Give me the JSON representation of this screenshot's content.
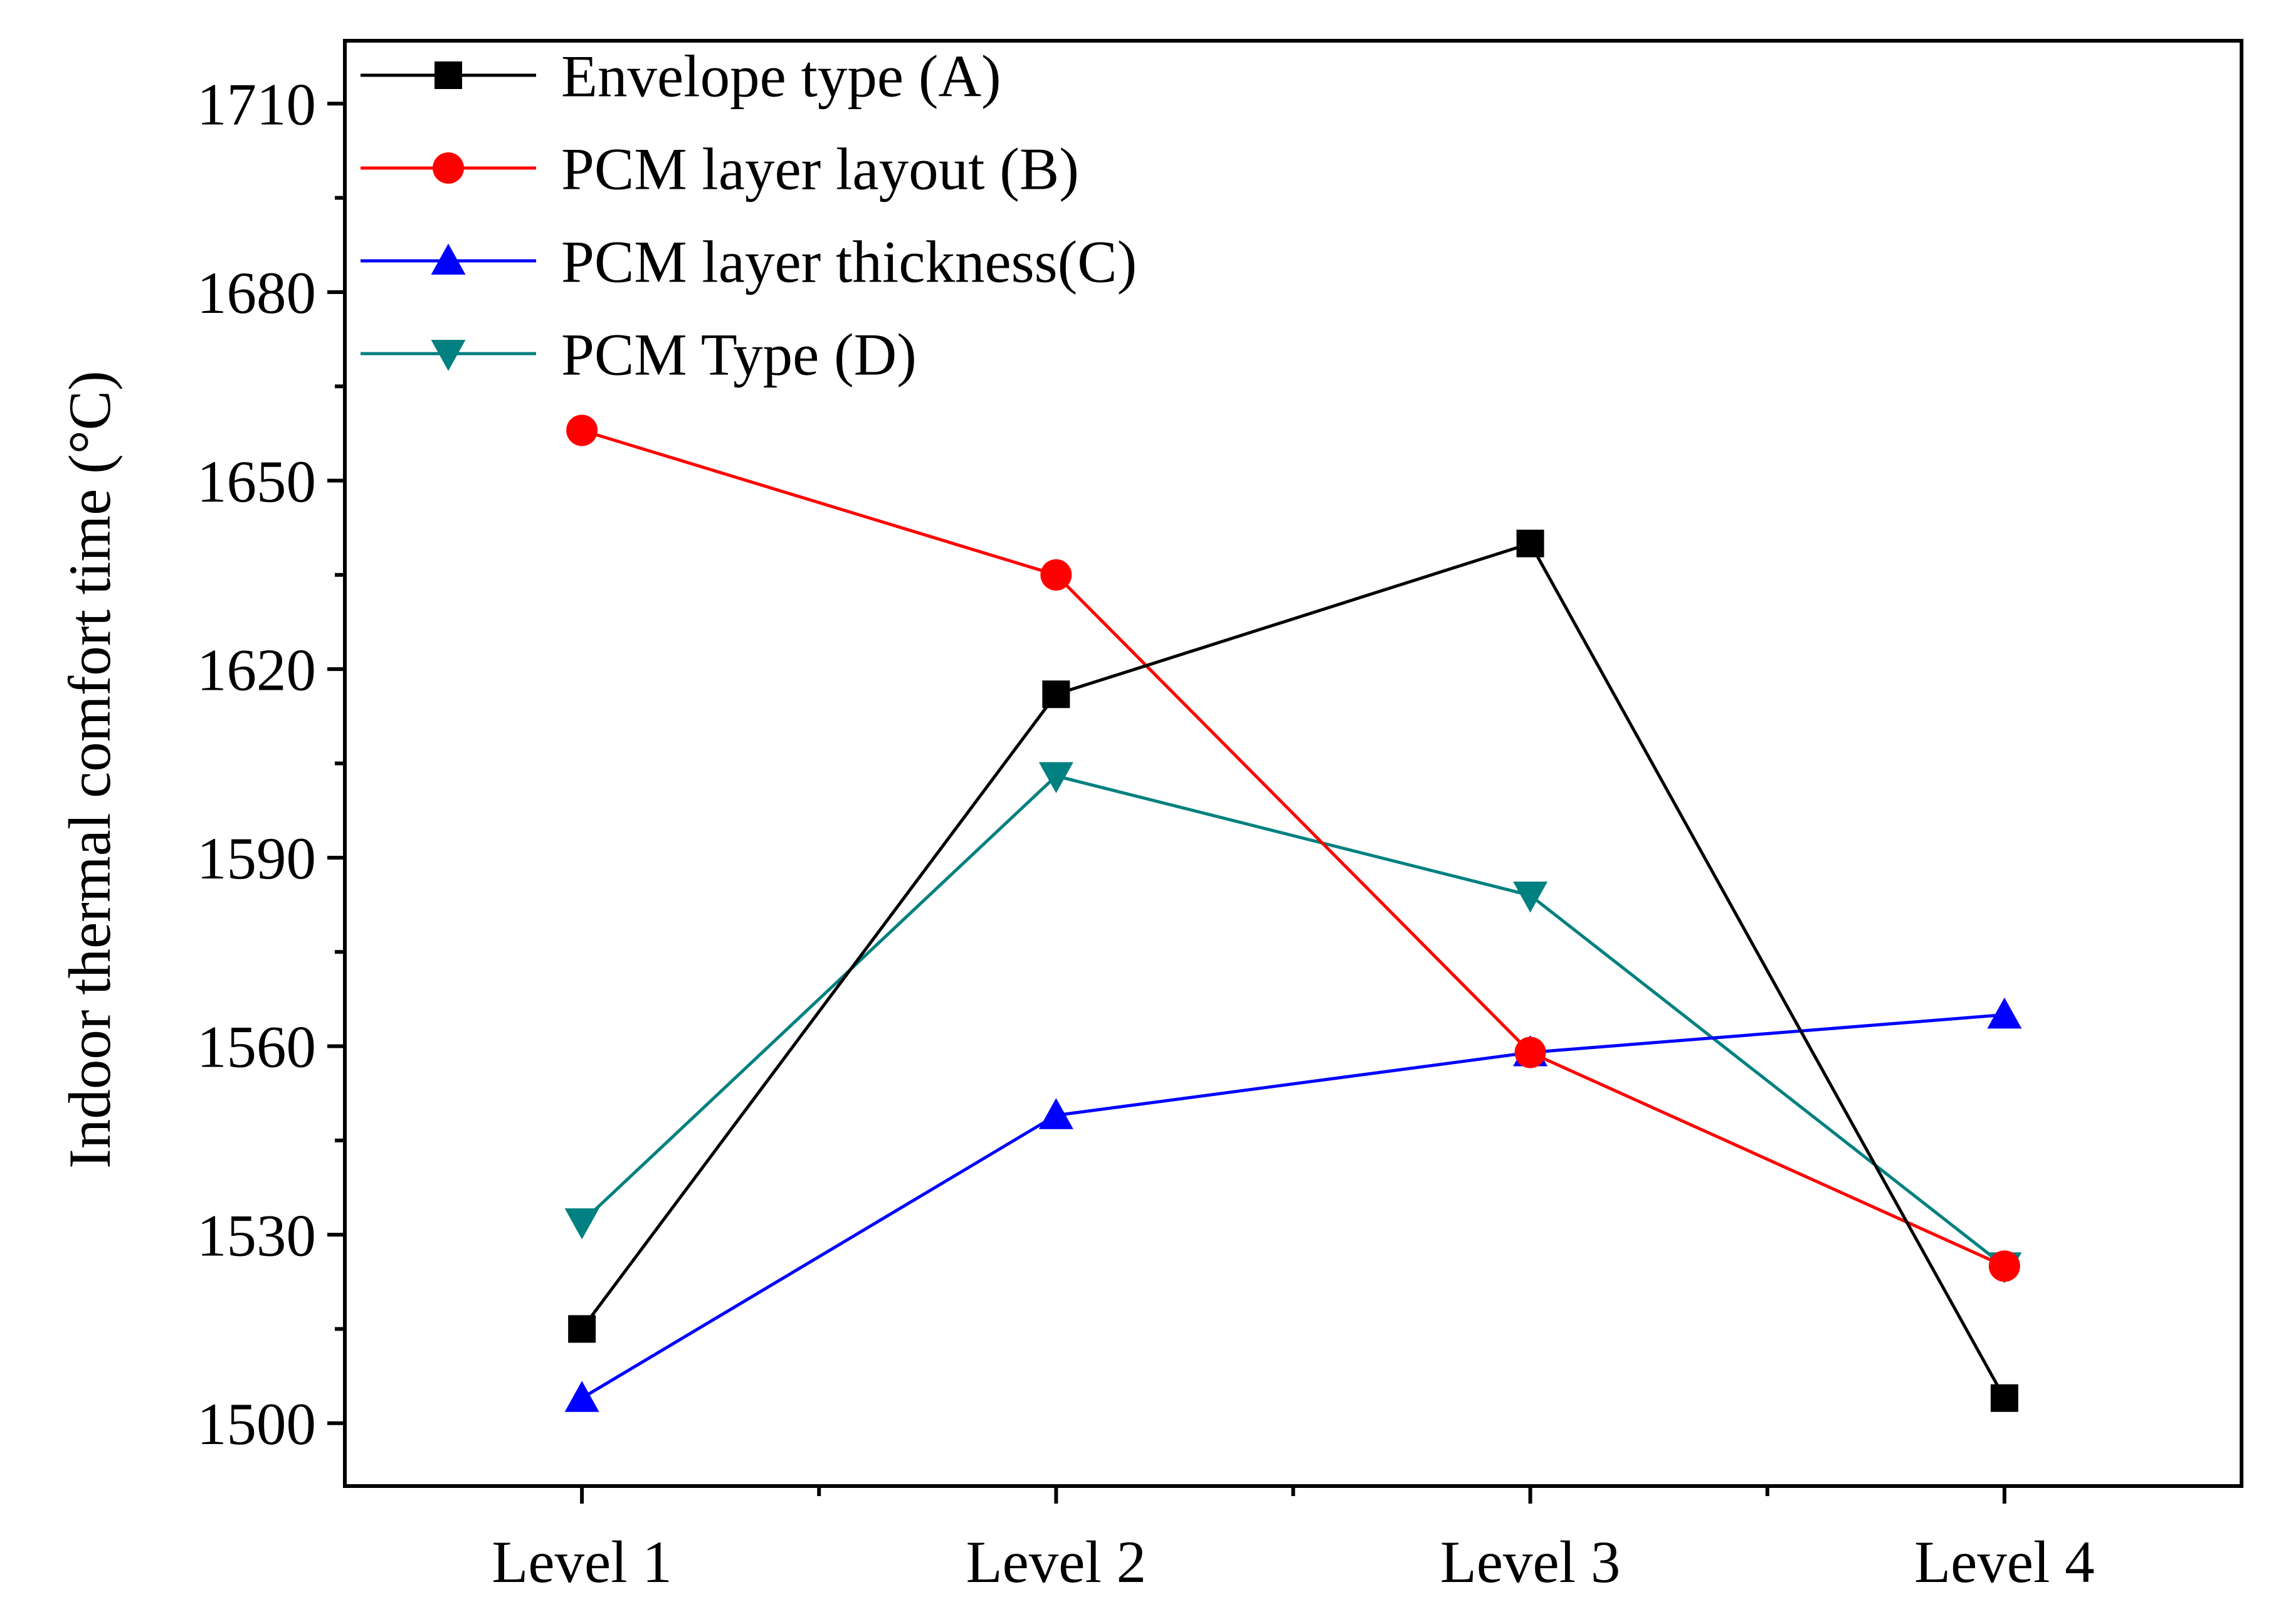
{
  "chart_data": {
    "type": "line",
    "title": "",
    "xlabel": "",
    "ylabel": "Indoor thermal comfort time (°C)",
    "categories": [
      "Level 1",
      "Level 2",
      "Level 3",
      "Level 4"
    ],
    "ylim": [
      1490,
      1720
    ],
    "yticks": [
      1500,
      1530,
      1560,
      1590,
      1620,
      1650,
      1680,
      1710
    ],
    "ytick_labels": [
      "1500",
      "1530",
      "1560",
      "1590",
      "1620",
      "1650",
      "1680",
      "1710"
    ],
    "grid": false,
    "legend_position": "top-left",
    "series": [
      {
        "name": "Envelope type (A)",
        "color": "#000000",
        "marker": "square",
        "values": [
          1515,
          1616,
          1640,
          1504
        ]
      },
      {
        "name": "PCM layer layout (B)",
        "color": "#ff0000",
        "marker": "circle",
        "values": [
          1658,
          1635,
          1559,
          1525
        ]
      },
      {
        "name": "PCM layer thickness(C)",
        "color": "#0000ff",
        "marker": "triangle-up",
        "values": [
          1504,
          1549,
          1559,
          1565
        ]
      },
      {
        "name": "PCM Type (D)",
        "color": "#008080",
        "marker": "triangle-down",
        "values": [
          1532,
          1603,
          1584,
          1525
        ]
      }
    ]
  }
}
